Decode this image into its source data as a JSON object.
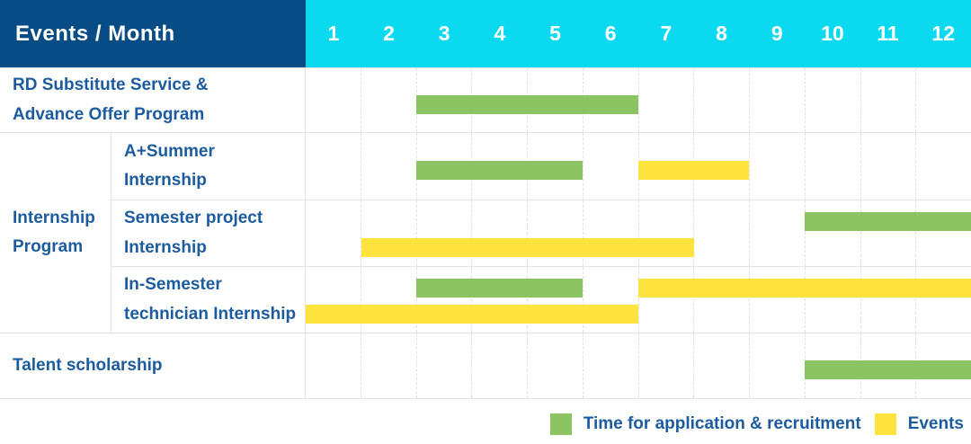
{
  "header": {
    "title": "Events / Month",
    "months": [
      "1",
      "2",
      "3",
      "4",
      "5",
      "6",
      "7",
      "8",
      "9",
      "10",
      "11",
      "12"
    ]
  },
  "labels": {
    "row1": "RD Substitute Service &\nAdvance Offer Program",
    "group": "Internship\nProgram",
    "row2": "A+Summer\nInternship",
    "row3": "Semester project\nInternship",
    "row4": "In-Semester\ntechnician Internship",
    "row5": "Talent scholarship"
  },
  "colors": {
    "header_bg": "#084C85",
    "months_bg": "#0BD9EF",
    "header_text": "#FFFFFF",
    "label_text": "#1C5C9E",
    "green": "#8CC464",
    "yellow": "#FFE440",
    "grid_line": "#E4E4E4"
  },
  "legend": [
    {
      "label": "Time for application & recruitment",
      "series": "application",
      "color": "#8CC464"
    },
    {
      "label": "Events",
      "series": "events",
      "color": "#FFE440"
    }
  ],
  "chart_data": {
    "type": "bar",
    "subtype": "gantt-timeline",
    "title": "Events / Month",
    "x_categories": [
      "1",
      "2",
      "3",
      "4",
      "5",
      "6",
      "7",
      "8",
      "9",
      "10",
      "11",
      "12"
    ],
    "x_range": [
      1,
      12
    ],
    "grid": true,
    "legend_position": "bottom-right",
    "series_colors": {
      "application": "#8CC464",
      "events": "#FFE440"
    },
    "rows": [
      {
        "group": "",
        "label": "RD Substitute Service & Advance Offer Program",
        "lines": 1,
        "bars": [
          {
            "series": "application",
            "line": 0,
            "start": 3,
            "end": 6
          }
        ]
      },
      {
        "group": "Internship Program",
        "label": "A+Summer Internship",
        "lines": 1,
        "bars": [
          {
            "series": "application",
            "line": 0,
            "start": 3,
            "end": 5
          },
          {
            "series": "events",
            "line": 0,
            "start": 7,
            "end": 8
          }
        ]
      },
      {
        "group": "Internship Program",
        "label": "Semester project Internship",
        "lines": 2,
        "bars": [
          {
            "series": "application",
            "line": 0,
            "start": 10,
            "end": 12
          },
          {
            "series": "events",
            "line": 1,
            "start": 2,
            "end": 7
          }
        ]
      },
      {
        "group": "Internship Program",
        "label": "In-Semester technician Internship",
        "lines": 2,
        "bars": [
          {
            "series": "application",
            "line": 0,
            "start": 3,
            "end": 5
          },
          {
            "series": "events",
            "line": 0,
            "start": 7,
            "end": 12
          },
          {
            "series": "events",
            "line": 1,
            "start": 1,
            "end": 6
          }
        ]
      },
      {
        "group": "",
        "label": "Talent scholarship",
        "lines": 1,
        "bars": [
          {
            "series": "application",
            "line": 0,
            "start": 10,
            "end": 12
          }
        ]
      }
    ]
  }
}
